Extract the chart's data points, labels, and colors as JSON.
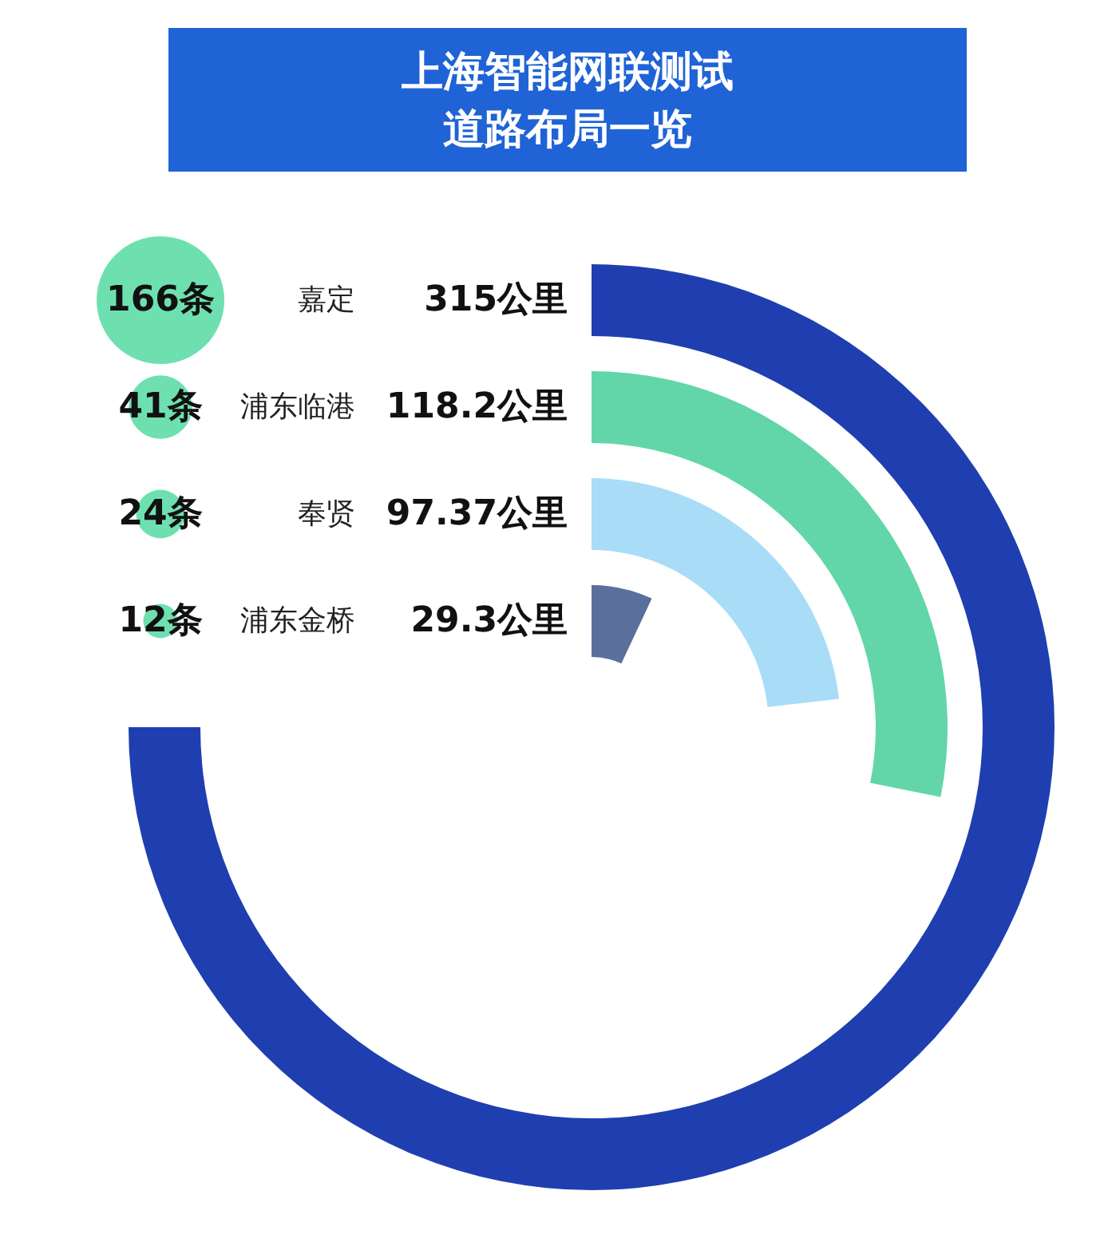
{
  "chart_data": {
    "type": "other",
    "title": "上海智能网联测试道路布局一览",
    "categories": [
      "嘉定",
      "浦东临港",
      "奉贤",
      "浦东金桥"
    ],
    "series": [
      {
        "type": "bar",
        "values": [
          315,
          118.2,
          97.37,
          29.3
        ],
        "value_labels": [
          "315公里",
          "118.2公里",
          "97.37公里",
          "29.3公里"
        ],
        "colors": [
          "#1f3fb0",
          "#62d6a8",
          "#a9dcf7",
          "#5a6f9c"
        ]
      },
      {
        "type": "bubble",
        "values": [
          166,
          41,
          24,
          12
        ],
        "value_labels": [
          "166条",
          "41条",
          "24条",
          "12条"
        ],
        "color": "#6ee0b0"
      }
    ]
  }
}
